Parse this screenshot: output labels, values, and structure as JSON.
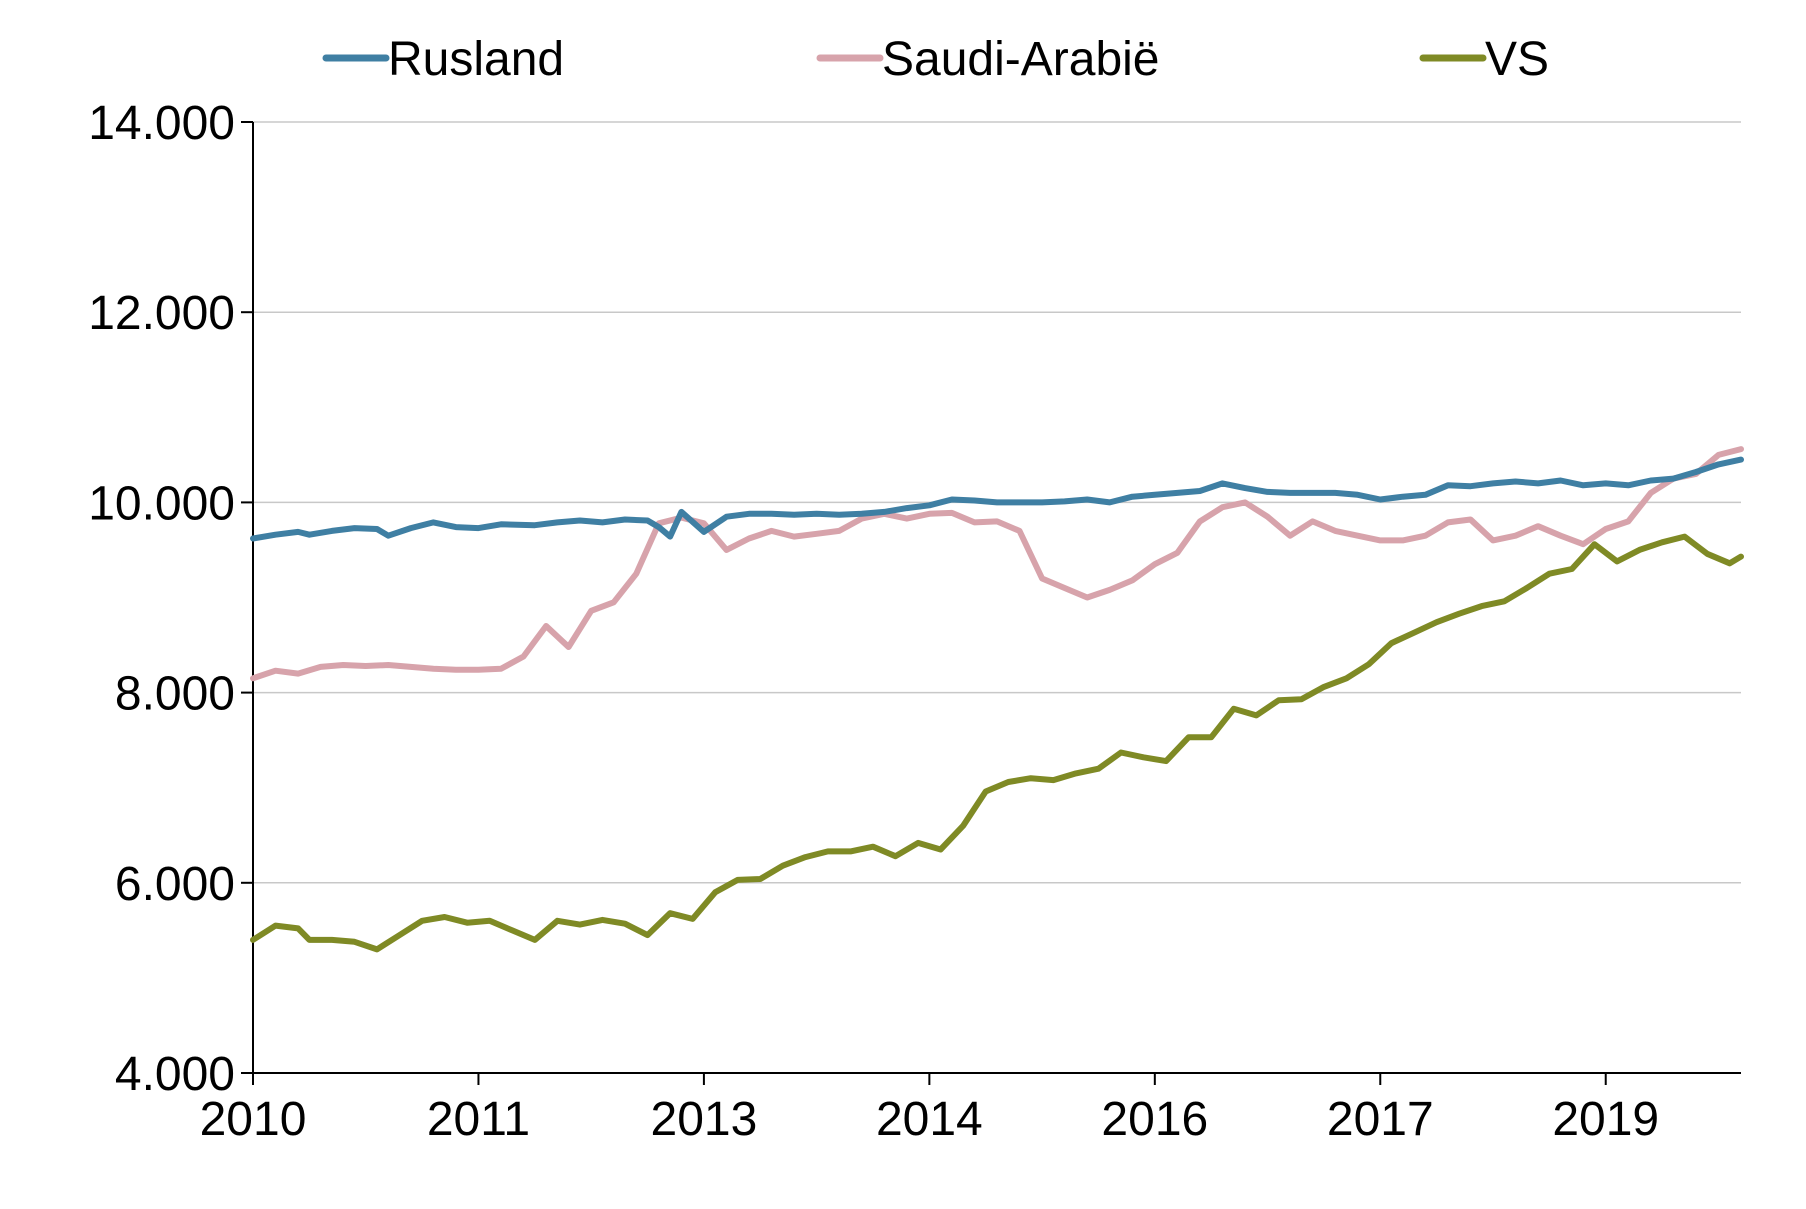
{
  "chart_data": {
    "type": "line",
    "title": "",
    "xlabel": "",
    "ylabel": "",
    "ylim": [
      4000,
      14000
    ],
    "yticks": [
      4000,
      6000,
      8000,
      10000,
      12000,
      14000
    ],
    "ytick_labels": [
      "4.000",
      "6.000",
      "8.000",
      "10.000",
      "12.000",
      "14.000"
    ],
    "xlim": [
      0,
      132
    ],
    "xticks": [
      0,
      20,
      40,
      60,
      80,
      100,
      120
    ],
    "xtick_labels": [
      "2010",
      "2011",
      "2013",
      "2014",
      "2016",
      "2017",
      "2019"
    ],
    "grid": "horizontal",
    "legend_position": "top",
    "series": [
      {
        "name": "Rusland",
        "color": "#3f7fa3",
        "points": [
          [
            0,
            9620
          ],
          [
            2,
            9660
          ],
          [
            4,
            9690
          ],
          [
            5,
            9660
          ],
          [
            7,
            9700
          ],
          [
            9,
            9730
          ],
          [
            11,
            9720
          ],
          [
            12,
            9650
          ],
          [
            14,
            9730
          ],
          [
            16,
            9790
          ],
          [
            18,
            9740
          ],
          [
            20,
            9730
          ],
          [
            22,
            9770
          ],
          [
            25,
            9760
          ],
          [
            27,
            9790
          ],
          [
            29,
            9810
          ],
          [
            31,
            9790
          ],
          [
            33,
            9820
          ],
          [
            35,
            9810
          ],
          [
            36,
            9740
          ],
          [
            37,
            9640
          ],
          [
            38,
            9900
          ],
          [
            40,
            9690
          ],
          [
            42,
            9850
          ],
          [
            44,
            9880
          ],
          [
            46,
            9880
          ],
          [
            48,
            9870
          ],
          [
            50,
            9880
          ],
          [
            52,
            9870
          ],
          [
            54,
            9880
          ],
          [
            56,
            9900
          ],
          [
            58,
            9940
          ],
          [
            60,
            9970
          ],
          [
            62,
            10030
          ],
          [
            64,
            10020
          ],
          [
            66,
            10000
          ],
          [
            68,
            10000
          ],
          [
            70,
            10000
          ],
          [
            72,
            10010
          ],
          [
            74,
            10030
          ],
          [
            76,
            10000
          ],
          [
            78,
            10060
          ],
          [
            80,
            10080
          ],
          [
            82,
            10100
          ],
          [
            84,
            10120
          ],
          [
            86,
            10200
          ],
          [
            88,
            10150
          ],
          [
            90,
            10110
          ],
          [
            92,
            10100
          ],
          [
            94,
            10100
          ],
          [
            96,
            10100
          ],
          [
            98,
            10080
          ],
          [
            100,
            10030
          ],
          [
            102,
            10060
          ],
          [
            104,
            10080
          ],
          [
            106,
            10180
          ],
          [
            108,
            10170
          ],
          [
            110,
            10200
          ],
          [
            112,
            10220
          ],
          [
            114,
            10200
          ],
          [
            116,
            10230
          ],
          [
            118,
            10180
          ],
          [
            120,
            10200
          ],
          [
            122,
            10180
          ],
          [
            124,
            10230
          ],
          [
            126,
            10250
          ],
          [
            128,
            10320
          ],
          [
            130,
            10400
          ],
          [
            132,
            10450
          ]
        ]
      },
      {
        "name": "Saudi-Arabië",
        "color": "#d7a3ab",
        "points": [
          [
            0,
            8150
          ],
          [
            2,
            8230
          ],
          [
            4,
            8200
          ],
          [
            6,
            8270
          ],
          [
            8,
            8290
          ],
          [
            10,
            8280
          ],
          [
            12,
            8290
          ],
          [
            14,
            8270
          ],
          [
            16,
            8250
          ],
          [
            18,
            8240
          ],
          [
            20,
            8240
          ],
          [
            22,
            8250
          ],
          [
            24,
            8380
          ],
          [
            26,
            8700
          ],
          [
            28,
            8480
          ],
          [
            30,
            8860
          ],
          [
            32,
            8950
          ],
          [
            34,
            9250
          ],
          [
            36,
            9780
          ],
          [
            38,
            9840
          ],
          [
            40,
            9780
          ],
          [
            42,
            9500
          ],
          [
            44,
            9620
          ],
          [
            46,
            9700
          ],
          [
            48,
            9640
          ],
          [
            50,
            9670
          ],
          [
            52,
            9700
          ],
          [
            54,
            9830
          ],
          [
            56,
            9880
          ],
          [
            58,
            9830
          ],
          [
            60,
            9880
          ],
          [
            62,
            9890
          ],
          [
            64,
            9790
          ],
          [
            66,
            9800
          ],
          [
            68,
            9700
          ],
          [
            70,
            9200
          ],
          [
            72,
            9100
          ],
          [
            74,
            9000
          ],
          [
            76,
            9080
          ],
          [
            78,
            9180
          ],
          [
            80,
            9350
          ],
          [
            82,
            9470
          ],
          [
            84,
            9800
          ],
          [
            86,
            9950
          ],
          [
            88,
            10000
          ],
          [
            90,
            9850
          ],
          [
            92,
            9650
          ],
          [
            94,
            9800
          ],
          [
            96,
            9700
          ],
          [
            98,
            9650
          ],
          [
            100,
            9600
          ],
          [
            102,
            9600
          ],
          [
            104,
            9650
          ],
          [
            106,
            9790
          ],
          [
            108,
            9820
          ],
          [
            110,
            9600
          ],
          [
            112,
            9650
          ],
          [
            114,
            9750
          ],
          [
            116,
            9650
          ],
          [
            118,
            9560
          ],
          [
            120,
            9720
          ],
          [
            122,
            9800
          ],
          [
            124,
            10100
          ],
          [
            126,
            10250
          ],
          [
            128,
            10300
          ],
          [
            130,
            10500
          ],
          [
            132,
            10560
          ]
        ]
      },
      {
        "name": "VS",
        "color": "#7f8a25",
        "points": [
          [
            0,
            5400
          ],
          [
            2,
            5550
          ],
          [
            4,
            5520
          ],
          [
            5,
            5400
          ],
          [
            7,
            5400
          ],
          [
            9,
            5380
          ],
          [
            11,
            5300
          ],
          [
            13,
            5450
          ],
          [
            15,
            5600
          ],
          [
            17,
            5640
          ],
          [
            19,
            5580
          ],
          [
            21,
            5600
          ],
          [
            23,
            5500
          ],
          [
            25,
            5400
          ],
          [
            27,
            5600
          ],
          [
            29,
            5560
          ],
          [
            31,
            5610
          ],
          [
            33,
            5570
          ],
          [
            35,
            5450
          ],
          [
            37,
            5680
          ],
          [
            39,
            5620
          ],
          [
            41,
            5900
          ],
          [
            43,
            6030
          ],
          [
            45,
            6040
          ],
          [
            47,
            6180
          ],
          [
            49,
            6270
          ],
          [
            51,
            6330
          ],
          [
            53,
            6330
          ],
          [
            55,
            6380
          ],
          [
            57,
            6280
          ],
          [
            59,
            6420
          ],
          [
            61,
            6350
          ],
          [
            63,
            6600
          ],
          [
            65,
            6960
          ],
          [
            67,
            7060
          ],
          [
            69,
            7100
          ],
          [
            71,
            7080
          ],
          [
            73,
            7150
          ],
          [
            75,
            7200
          ],
          [
            77,
            7370
          ],
          [
            79,
            7320
          ],
          [
            81,
            7280
          ],
          [
            83,
            7530
          ],
          [
            85,
            7530
          ],
          [
            87,
            7830
          ],
          [
            89,
            7760
          ],
          [
            91,
            7920
          ],
          [
            93,
            7930
          ],
          [
            95,
            8060
          ],
          [
            97,
            8150
          ],
          [
            99,
            8300
          ],
          [
            101,
            8520
          ],
          [
            103,
            8630
          ],
          [
            105,
            8740
          ],
          [
            107,
            8830
          ],
          [
            109,
            8910
          ],
          [
            111,
            8960
          ],
          [
            113,
            9100
          ],
          [
            115,
            9250
          ],
          [
            117,
            9300
          ],
          [
            119,
            9560
          ],
          [
            121,
            9380
          ],
          [
            123,
            9500
          ],
          [
            125,
            9580
          ],
          [
            127,
            9640
          ],
          [
            129,
            9460
          ],
          [
            131,
            9360
          ],
          [
            132,
            9430
          ]
        ]
      }
    ]
  }
}
